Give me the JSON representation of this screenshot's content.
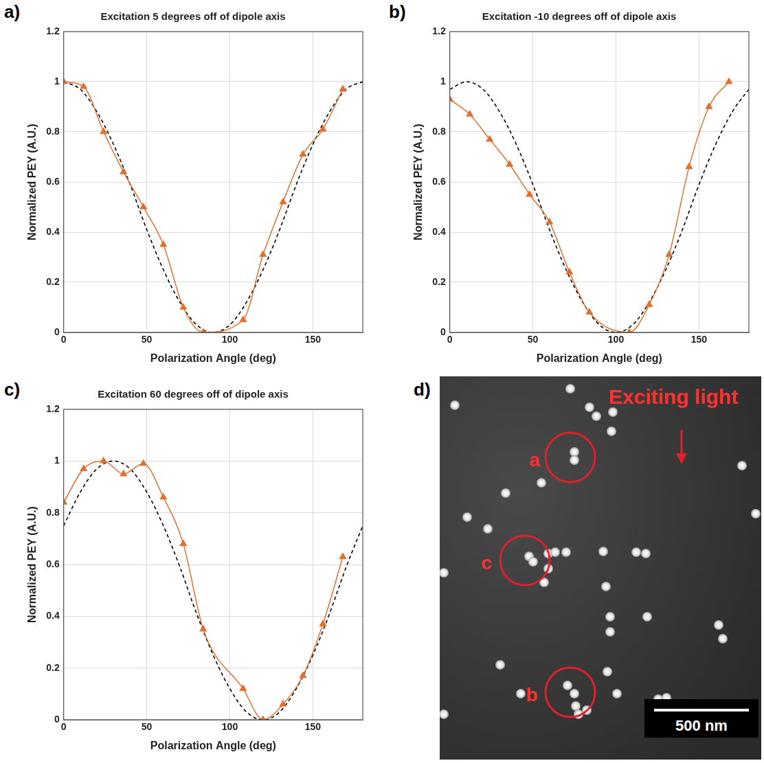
{
  "chart_data": [
    {
      "type": "line",
      "panel": "a)",
      "title": "Excitation 5 degrees off of dipole axis",
      "x_label": "Polarization Angle (deg)",
      "y_label": "Normalized PEY (A.U.)",
      "xlim": [
        0,
        180
      ],
      "xticks": [
        0,
        50,
        100,
        150
      ],
      "ylim": [
        0,
        1.2
      ],
      "yticks": [
        0,
        0.2,
        0.4,
        0.6,
        0.8,
        1,
        1.2
      ],
      "grid": true,
      "series": [
        {
          "color": "#e07030",
          "marker": "triangle",
          "line_style": "solid",
          "x": [
            0,
            12,
            24,
            36,
            48,
            60,
            72,
            84,
            108,
            120,
            132,
            144,
            156,
            168
          ],
          "values": [
            1.0,
            0.98,
            0.8,
            0.64,
            0.5,
            0.35,
            0.1,
            0.0,
            0.05,
            0.31,
            0.52,
            0.71,
            0.81,
            0.97
          ]
        },
        {
          "color": "#000000",
          "marker": "none",
          "line_style": "dashed",
          "x": [
            0,
            10,
            20,
            30,
            40,
            50,
            60,
            70,
            80,
            90,
            100,
            110,
            120,
            130,
            140,
            150,
            160,
            170,
            180
          ],
          "values": [
            1.0,
            0.97,
            0.88,
            0.75,
            0.59,
            0.41,
            0.25,
            0.12,
            0.03,
            0.0,
            0.03,
            0.12,
            0.25,
            0.41,
            0.59,
            0.75,
            0.88,
            0.97,
            1.0
          ]
        }
      ]
    },
    {
      "type": "line",
      "panel": "b)",
      "title": "Excitation -10 degrees off of dipole axis",
      "x_label": "Polarization Angle (deg)",
      "y_label": "Normalized PEY (A.U.)",
      "xlim": [
        0,
        180
      ],
      "xticks": [
        0,
        50,
        100,
        150
      ],
      "ylim": [
        0,
        1.2
      ],
      "yticks": [
        0,
        0.2,
        0.4,
        0.6,
        0.8,
        1,
        1.2
      ],
      "grid": true,
      "series": [
        {
          "color": "#e07030",
          "marker": "triangle",
          "line_style": "solid",
          "x": [
            0,
            12,
            24,
            36,
            48,
            60,
            72,
            84,
            108,
            120,
            132,
            144,
            156,
            168
          ],
          "values": [
            0.93,
            0.87,
            0.77,
            0.67,
            0.55,
            0.44,
            0.24,
            0.08,
            0.0,
            0.11,
            0.31,
            0.66,
            0.9,
            1.0
          ]
        },
        {
          "color": "#000000",
          "marker": "none",
          "line_style": "dashed",
          "x": [
            0,
            10,
            20,
            30,
            40,
            50,
            60,
            70,
            80,
            90,
            100,
            110,
            120,
            130,
            140,
            150,
            160,
            170,
            180
          ],
          "values": [
            0.97,
            1.0,
            0.97,
            0.88,
            0.75,
            0.59,
            0.41,
            0.25,
            0.12,
            0.03,
            0.0,
            0.03,
            0.12,
            0.25,
            0.41,
            0.59,
            0.75,
            0.88,
            0.97
          ]
        }
      ]
    },
    {
      "type": "line",
      "panel": "c)",
      "title": "Excitation 60 degrees off of dipole axis",
      "x_label": "Polarization Angle (deg)",
      "y_label": "Normalized PEY (A.U.)",
      "xlim": [
        0,
        180
      ],
      "xticks": [
        0,
        50,
        100,
        150
      ],
      "ylim": [
        0,
        1.2
      ],
      "yticks": [
        0,
        0.2,
        0.4,
        0.6,
        0.8,
        1,
        1.2
      ],
      "grid": true,
      "series": [
        {
          "color": "#e07030",
          "marker": "triangle",
          "line_style": "solid",
          "x": [
            0,
            12,
            24,
            36,
            48,
            60,
            72,
            84,
            108,
            120,
            132,
            144,
            156,
            168
          ],
          "values": [
            0.84,
            0.97,
            1.0,
            0.95,
            0.99,
            0.86,
            0.68,
            0.35,
            0.12,
            0.0,
            0.06,
            0.17,
            0.37,
            0.63
          ]
        },
        {
          "color": "#000000",
          "marker": "none",
          "line_style": "dashed",
          "x": [
            0,
            10,
            20,
            30,
            40,
            50,
            60,
            70,
            80,
            90,
            100,
            110,
            120,
            130,
            140,
            150,
            160,
            170,
            180
          ],
          "values": [
            0.75,
            0.88,
            0.97,
            1.0,
            0.97,
            0.88,
            0.75,
            0.59,
            0.41,
            0.25,
            0.12,
            0.03,
            0.0,
            0.03,
            0.12,
            0.25,
            0.41,
            0.59,
            0.75
          ]
        }
      ]
    }
  ],
  "image_panel": {
    "panel": "d)",
    "annotation": "Exciting light",
    "circles": [
      "a",
      "c",
      "b"
    ],
    "scale_bar": "500 nm"
  }
}
